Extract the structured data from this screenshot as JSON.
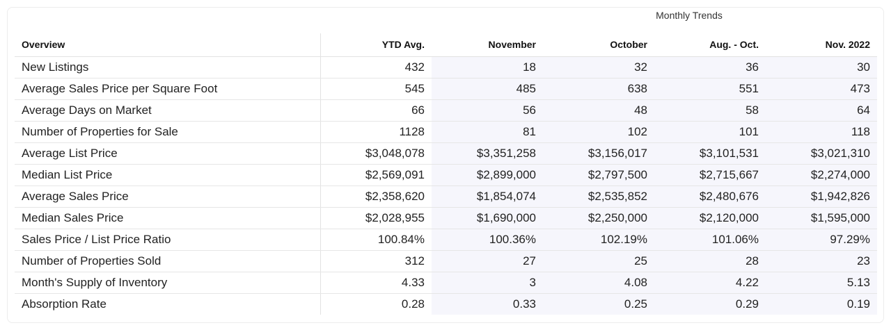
{
  "header": {
    "group_label": "Monthly Trends",
    "columns": [
      "Overview",
      "YTD Avg.",
      "November",
      "October",
      "Aug. - Oct.",
      "Nov. 2022"
    ]
  },
  "rows": [
    {
      "label": "New Listings",
      "values": [
        "432",
        "18",
        "32",
        "36",
        "30"
      ]
    },
    {
      "label": "Average Sales Price per Square Foot",
      "values": [
        "545",
        "485",
        "638",
        "551",
        "473"
      ]
    },
    {
      "label": "Average Days on Market",
      "values": [
        "66",
        "56",
        "48",
        "58",
        "64"
      ]
    },
    {
      "label": "Number of Properties for Sale",
      "values": [
        "1128",
        "81",
        "102",
        "101",
        "118"
      ]
    },
    {
      "label": "Average List Price",
      "values": [
        "$3,048,078",
        "$3,351,258",
        "$3,156,017",
        "$3,101,531",
        "$3,021,310"
      ]
    },
    {
      "label": "Median List Price",
      "values": [
        "$2,569,091",
        "$2,899,000",
        "$2,797,500",
        "$2,715,667",
        "$2,274,000"
      ]
    },
    {
      "label": "Average Sales Price",
      "values": [
        "$2,358,620",
        "$1,854,074",
        "$2,535,852",
        "$2,480,676",
        "$1,942,826"
      ]
    },
    {
      "label": "Median Sales Price",
      "values": [
        "$2,028,955",
        "$1,690,000",
        "$2,250,000",
        "$2,120,000",
        "$1,595,000"
      ]
    },
    {
      "label": "Sales Price / List Price Ratio",
      "values": [
        "100.84%",
        "100.36%",
        "102.19%",
        "101.06%",
        "97.29%"
      ]
    },
    {
      "label": "Number of Properties Sold",
      "values": [
        "312",
        "27",
        "25",
        "28",
        "23"
      ]
    },
    {
      "label": "Month's Supply of Inventory",
      "values": [
        "4.33",
        "3",
        "4.08",
        "4.22",
        "5.13"
      ]
    },
    {
      "label": "Absorption Rate",
      "values": [
        "0.28",
        "0.33",
        "0.25",
        "0.29",
        "0.19"
      ]
    }
  ]
}
